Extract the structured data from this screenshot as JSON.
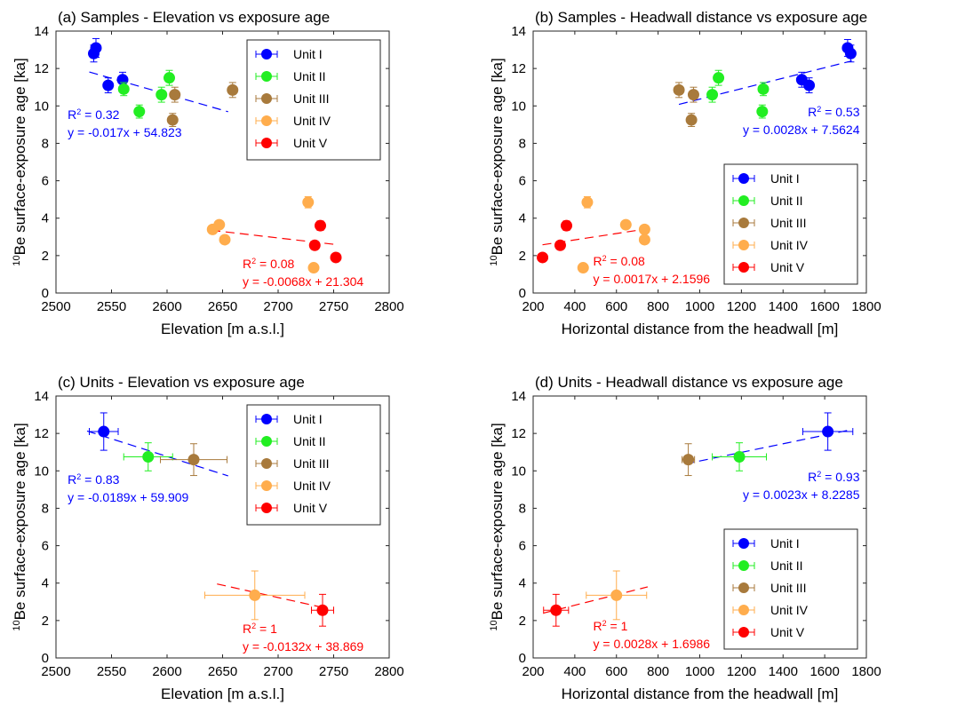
{
  "figure": {
    "ylabel_prefix": "10",
    "ylabel_main": "Be surface-exposure age [ka]"
  },
  "legend": {
    "units": [
      {
        "name": "Unit I",
        "color": "#0000ff"
      },
      {
        "name": "Unit II",
        "color": "#22ee22"
      },
      {
        "name": "Unit III",
        "color": "#a87a3c"
      },
      {
        "name": "Unit IV",
        "color": "#ffad4d"
      },
      {
        "name": "Unit V",
        "color": "#ff0000"
      }
    ]
  },
  "chart_data": [
    {
      "type": "scatter",
      "title": "(a) Samples - Elevation vs exposure age",
      "xlabel": "Elevation [m a.s.l.]",
      "ylabel": "10Be surface-exposure age [ka]",
      "xlim": [
        2500,
        2800
      ],
      "ylim": [
        0,
        14
      ],
      "xticks": [
        2500,
        2550,
        2600,
        2650,
        2700,
        2750,
        2800
      ],
      "yticks": [
        0,
        2,
        4,
        6,
        8,
        10,
        12,
        14
      ],
      "legend_position": "top-right",
      "series": [
        {
          "name": "Unit I",
          "points": [
            [
              2534,
              12.8,
              0.45
            ],
            [
              2536,
              13.1,
              0.5
            ],
            [
              2547,
              11.1,
              0.4
            ],
            [
              2560,
              11.4,
              0.4
            ]
          ]
        },
        {
          "name": "Unit II",
          "points": [
            [
              2561,
              10.9,
              0.35
            ],
            [
              2575,
              9.7,
              0.35
            ],
            [
              2595,
              10.6,
              0.4
            ],
            [
              2602,
              11.5,
              0.4
            ]
          ]
        },
        {
          "name": "Unit III",
          "points": [
            [
              2605,
              9.25,
              0.35
            ],
            [
              2607,
              10.6,
              0.4
            ],
            [
              2659,
              10.85,
              0.4
            ]
          ]
        },
        {
          "name": "Unit IV",
          "points": [
            [
              2641,
              3.4,
              0.2
            ],
            [
              2647,
              3.65,
              0.2
            ],
            [
              2652,
              2.85,
              0.2
            ],
            [
              2727,
              4.85,
              0.3
            ],
            [
              2732,
              1.35,
              0.15
            ]
          ]
        },
        {
          "name": "Unit V",
          "points": [
            [
              2733,
              2.55,
              0.2
            ],
            [
              2738,
              3.6,
              0.25
            ],
            [
              2752,
              1.9,
              0.15
            ]
          ]
        }
      ],
      "fits": [
        {
          "color": "#0000ff",
          "x": [
            2530,
            2655
          ],
          "slope": -0.017,
          "intercept": 54.823,
          "r2_value": "0.32",
          "equation": "y = -0.017x + 54.823"
        },
        {
          "color": "#ff0000",
          "x": [
            2640,
            2752
          ],
          "slope": -0.0068,
          "intercept": 21.304,
          "r2_value": "0.08",
          "equation": "y = -0.0068x + 21.304"
        }
      ]
    },
    {
      "type": "scatter",
      "title": "(b) Samples - Headwall distance vs exposure age",
      "xlabel": "Horizontal distance from the headwall [m]",
      "ylabel": "10Be surface-exposure age [ka]",
      "xlim": [
        200,
        1800
      ],
      "ylim": [
        0,
        14
      ],
      "xticks": [
        200,
        400,
        600,
        800,
        1000,
        1200,
        1400,
        1600,
        1800
      ],
      "yticks": [
        0,
        2,
        4,
        6,
        8,
        10,
        12,
        14
      ],
      "legend_position": "bottom-right",
      "series": [
        {
          "name": "Unit I",
          "points": [
            [
              1710,
              13.1,
              0.45
            ],
            [
              1725,
              12.8,
              0.45
            ],
            [
              1490,
              11.4,
              0.4
            ],
            [
              1525,
              11.1,
              0.4
            ]
          ]
        },
        {
          "name": "Unit II",
          "points": [
            [
              1060,
              10.6,
              0.4
            ],
            [
              1090,
              11.5,
              0.4
            ],
            [
              1305,
              10.9,
              0.35
            ],
            [
              1300,
              9.7,
              0.35
            ]
          ]
        },
        {
          "name": "Unit III",
          "points": [
            [
              900,
              10.85,
              0.4
            ],
            [
              970,
              10.6,
              0.4
            ],
            [
              960,
              9.25,
              0.35
            ]
          ]
        },
        {
          "name": "Unit IV",
          "points": [
            [
              460,
              4.85,
              0.3
            ],
            [
              440,
              1.35,
              0.15
            ],
            [
              645,
              3.65,
              0.2
            ],
            [
              735,
              3.4,
              0.2
            ],
            [
              735,
              2.85,
              0.2
            ]
          ]
        },
        {
          "name": "Unit V",
          "points": [
            [
              245,
              1.9,
              0.15
            ],
            [
              330,
              2.55,
              0.2
            ],
            [
              360,
              3.6,
              0.25
            ]
          ]
        }
      ],
      "fits": [
        {
          "color": "#0000ff",
          "x": [
            900,
            1730
          ],
          "slope": 0.0028,
          "intercept": 7.5624,
          "r2_value": "0.53",
          "equation": "y = 0.0028x + 7.5624"
        },
        {
          "color": "#ff0000",
          "x": [
            245,
            740
          ],
          "slope": 0.0017,
          "intercept": 2.1596,
          "r2_value": "0.08",
          "equation": "y = 0.0017x + 2.1596"
        }
      ]
    },
    {
      "type": "scatter",
      "title": "(c) Units - Elevation vs exposure age",
      "xlabel": "Elevation [m a.s.l.]",
      "ylabel": "10Be surface-exposure age [ka]",
      "xlim": [
        2500,
        2800
      ],
      "ylim": [
        0,
        14
      ],
      "xticks": [
        2500,
        2550,
        2600,
        2650,
        2700,
        2750,
        2800
      ],
      "yticks": [
        0,
        2,
        4,
        6,
        8,
        10,
        12,
        14
      ],
      "legend_position": "top-right",
      "series": [
        {
          "name": "Unit I",
          "points": [
            [
              2543,
              12.1,
              1.0,
              13
            ]
          ]
        },
        {
          "name": "Unit II",
          "points": [
            [
              2583,
              10.75,
              0.75,
              22
            ]
          ]
        },
        {
          "name": "Unit III",
          "points": [
            [
              2624,
              10.6,
              0.85,
              30
            ]
          ]
        },
        {
          "name": "Unit IV",
          "points": [
            [
              2679,
              3.35,
              1.3,
              45
            ]
          ]
        },
        {
          "name": "Unit V",
          "points": [
            [
              2740,
              2.55,
              0.85,
              10
            ]
          ]
        }
      ],
      "fits": [
        {
          "color": "#0000ff",
          "x": [
            2528,
            2655
          ],
          "slope": -0.0189,
          "intercept": 59.909,
          "r2_value": "0.83",
          "equation": "y = -0.0189x + 59.909"
        },
        {
          "color": "#ff0000",
          "x": [
            2645,
            2740
          ],
          "slope": -0.0132,
          "intercept": 38.869,
          "r2_value": "1",
          "equation": "y = -0.0132x + 38.869"
        }
      ]
    },
    {
      "type": "scatter",
      "title": "(d) Units - Headwall distance vs exposure age",
      "xlabel": "Horizontal distance from the headwall [m]",
      "ylabel": "10Be surface-exposure age [ka]",
      "xlim": [
        200,
        1800
      ],
      "ylim": [
        0,
        14
      ],
      "xticks": [
        200,
        400,
        600,
        800,
        1000,
        1200,
        1400,
        1600,
        1800
      ],
      "yticks": [
        0,
        2,
        4,
        6,
        8,
        10,
        12,
        14
      ],
      "legend_position": "bottom-right",
      "series": [
        {
          "name": "Unit I",
          "points": [
            [
              1615,
              12.1,
              1.0,
              120
            ]
          ]
        },
        {
          "name": "Unit II",
          "points": [
            [
              1190,
              10.75,
              0.75,
              130
            ]
          ]
        },
        {
          "name": "Unit III",
          "points": [
            [
              945,
              10.6,
              0.85,
              30
            ]
          ]
        },
        {
          "name": "Unit IV",
          "points": [
            [
              600,
              3.35,
              1.3,
              145
            ]
          ]
        },
        {
          "name": "Unit V",
          "points": [
            [
              310,
              2.55,
              0.85,
              60
            ]
          ]
        }
      ],
      "fits": [
        {
          "color": "#0000ff",
          "x": [
            930,
            1730
          ],
          "slope": 0.0023,
          "intercept": 8.2285,
          "r2_value": "0.93",
          "equation": "y = 0.0023x + 8.2285"
        },
        {
          "color": "#ff0000",
          "x": [
            250,
            750
          ],
          "slope": 0.0028,
          "intercept": 1.6986,
          "r2_value": "1",
          "equation": "y = 0.0028x + 1.6986"
        }
      ]
    }
  ]
}
